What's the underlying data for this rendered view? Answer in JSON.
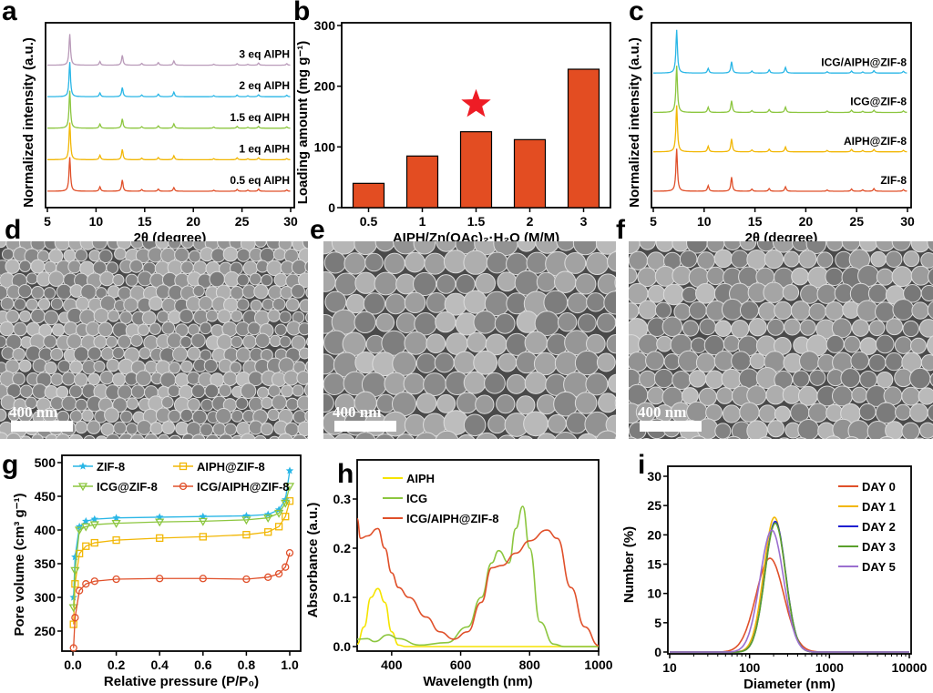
{
  "panel_letters": [
    "a",
    "b",
    "c",
    "d",
    "e",
    "f",
    "g",
    "h",
    "i"
  ],
  "sem": {
    "scale_bar": "400 nm"
  },
  "chart_data": [
    {
      "id": "a",
      "type": "line",
      "xlabel": "2θ (degree)",
      "ylabel": "Normalized intensity (a.u.)",
      "xlim": [
        5,
        30
      ],
      "xticks": [
        5,
        10,
        15,
        20,
        25,
        30
      ],
      "peaks": {
        "positions": [
          7.3,
          10.4,
          12.7,
          14.7,
          16.4,
          18.0,
          22.1,
          24.5,
          25.6,
          26.7,
          29.6
        ],
        "intensity": [
          1,
          0.12,
          0.3,
          0.05,
          0.07,
          0.12,
          0.03,
          0.05,
          0.03,
          0.06,
          0.04
        ]
      },
      "series": [
        {
          "name": "0.5 eq AIPH",
          "color": "#e0502a"
        },
        {
          "name": "1 eq AIPH",
          "color": "#f2b705"
        },
        {
          "name": "1.5 eq AIPH",
          "color": "#8cc63f"
        },
        {
          "name": "2 eq AIPH",
          "color": "#29b6e6"
        },
        {
          "name": "3 eq AIPH",
          "color": "#b99ab9"
        }
      ]
    },
    {
      "id": "b",
      "type": "bar",
      "xlabel": "AIPH/Zn(OAc)₂·H₂O (M/M)",
      "ylabel": "Loading amount (mg g⁻¹)",
      "categories": [
        "0.5",
        "1",
        "1.5",
        "2",
        "3"
      ],
      "values": [
        40,
        85,
        125,
        112,
        228
      ],
      "ylim": [
        0,
        300
      ],
      "yticks": [
        0,
        100,
        200,
        300
      ],
      "color": "#e34d22",
      "highlight": "1.5",
      "highlight_color": "#ee1c25"
    },
    {
      "id": "c",
      "type": "line",
      "xlabel": "2θ (degree)",
      "ylabel": "Normalized intensity (a.u.)",
      "xlim": [
        5,
        30
      ],
      "xticks": [
        5,
        10,
        15,
        20,
        25,
        30
      ],
      "series": [
        {
          "name": "ZIF-8",
          "color": "#e0502a"
        },
        {
          "name": "AIPH@ZIF-8",
          "color": "#f2b705"
        },
        {
          "name": "ICG@ZIF-8",
          "color": "#8cc63f"
        },
        {
          "name": "ICG/AIPH@ZIF-8",
          "color": "#29b6e6"
        }
      ]
    },
    {
      "id": "g",
      "type": "scatter",
      "xlabel": "Relative pressure (P/P₀)",
      "ylabel": "Pore volume (cm³ g⁻¹)",
      "xlim": [
        0,
        1
      ],
      "ylim": [
        225,
        510
      ],
      "xticks": [
        0,
        0.2,
        0.4,
        0.6,
        0.8,
        1.0
      ],
      "yticks": [
        250,
        300,
        350,
        400,
        450,
        500
      ],
      "legend": "top",
      "series": [
        {
          "name": "ZIF-8",
          "color": "#29b6e6",
          "marker": "star",
          "x": [
            0.003,
            0.01,
            0.03,
            0.06,
            0.1,
            0.2,
            0.4,
            0.6,
            0.8,
            0.9,
            0.95,
            0.98,
            1.0
          ],
          "y": [
            300,
            360,
            405,
            413,
            416,
            418,
            419,
            420,
            421,
            423,
            430,
            445,
            488
          ]
        },
        {
          "name": "AIPH@ZIF-8",
          "color": "#f2b705",
          "marker": "square",
          "x": [
            0.003,
            0.01,
            0.03,
            0.06,
            0.1,
            0.2,
            0.4,
            0.6,
            0.8,
            0.9,
            0.95,
            0.98,
            1.0
          ],
          "y": [
            260,
            320,
            365,
            376,
            381,
            385,
            388,
            390,
            393,
            397,
            405,
            420,
            443
          ]
        },
        {
          "name": "ICG@ZIF-8",
          "color": "#8cc63f",
          "marker": "triangle",
          "x": [
            0.003,
            0.01,
            0.03,
            0.06,
            0.1,
            0.2,
            0.4,
            0.6,
            0.8,
            0.9,
            0.95,
            0.98,
            1.0
          ],
          "y": [
            285,
            340,
            400,
            405,
            408,
            410,
            412,
            413,
            415,
            418,
            425,
            440,
            465
          ]
        },
        {
          "name": "ICG/AIPH@ZIF-8",
          "color": "#e0502a",
          "marker": "circle",
          "x": [
            0.003,
            0.01,
            0.03,
            0.06,
            0.1,
            0.2,
            0.4,
            0.6,
            0.8,
            0.9,
            0.95,
            0.98,
            1.0
          ],
          "y": [
            225,
            270,
            310,
            320,
            324,
            327,
            328,
            328,
            327,
            330,
            335,
            345,
            366
          ]
        }
      ]
    },
    {
      "id": "h",
      "type": "line",
      "xlabel": "Wavelength (nm)",
      "ylabel": "Absorbance (a.u.)",
      "xlim": [
        300,
        1000
      ],
      "ylim": [
        -0.008,
        0.34
      ],
      "xticks": [
        400,
        600,
        800,
        1000
      ],
      "yticks": [
        0.0,
        0.1,
        0.2,
        0.3
      ],
      "legend": "top-left",
      "series": [
        {
          "name": "AIPH",
          "color": "#f5e400",
          "x": [
            300,
            320,
            340,
            360,
            380,
            400,
            420,
            440,
            1000
          ],
          "y": [
            0.005,
            0.04,
            0.1,
            0.118,
            0.09,
            0.03,
            0.003,
            0,
            0
          ]
        },
        {
          "name": "ICG",
          "color": "#8cc63f",
          "x": [
            300,
            330,
            350,
            390,
            420,
            480,
            560,
            620,
            660,
            690,
            710,
            740,
            760,
            780,
            800,
            830,
            870,
            900,
            1000
          ],
          "y": [
            0.015,
            0.016,
            0.01,
            0.024,
            0.016,
            0.003,
            0.008,
            0.04,
            0.1,
            0.17,
            0.195,
            0.17,
            0.24,
            0.285,
            0.2,
            0.05,
            0.005,
            0,
            0
          ]
        },
        {
          "name": "ICG/AIPH@ZIF-8",
          "color": "#e0502a",
          "x": [
            300,
            310,
            330,
            360,
            380,
            400,
            420,
            450,
            500,
            540,
            580,
            620,
            660,
            690,
            720,
            760,
            800,
            850,
            880,
            920,
            960,
            1000
          ],
          "y": [
            0.26,
            0.22,
            0.225,
            0.24,
            0.2,
            0.15,
            0.12,
            0.1,
            0.06,
            0.03,
            0.015,
            0.03,
            0.09,
            0.16,
            0.165,
            0.19,
            0.215,
            0.237,
            0.22,
            0.12,
            0.04,
            0.002
          ]
        }
      ]
    },
    {
      "id": "i",
      "type": "line",
      "xlabel": "Diameter (nm)",
      "ylabel": "Number (%)",
      "xscale": "log",
      "xlim": [
        10,
        10000
      ],
      "ylim": [
        0,
        30
      ],
      "xticks": [
        10,
        100,
        1000,
        10000
      ],
      "yticks": [
        0,
        5,
        10,
        15,
        20,
        25,
        30
      ],
      "legend": "top-right",
      "series": [
        {
          "name": "DAY 0",
          "color": "#e0502a",
          "peak_nm": 180,
          "peak_pct": 16,
          "width": 0.5
        },
        {
          "name": "DAY 1",
          "color": "#f2b705",
          "peak_nm": 205,
          "peak_pct": 23,
          "width": 0.38
        },
        {
          "name": "DAY 2",
          "color": "#1f1fd0",
          "peak_nm": 210,
          "peak_pct": 22.3,
          "width": 0.37
        },
        {
          "name": "DAY 3",
          "color": "#5aa02c",
          "peak_nm": 210,
          "peak_pct": 22,
          "width": 0.37
        },
        {
          "name": "DAY 5",
          "color": "#9b6fd0",
          "peak_nm": 190,
          "peak_pct": 20.8,
          "width": 0.42
        }
      ]
    }
  ]
}
